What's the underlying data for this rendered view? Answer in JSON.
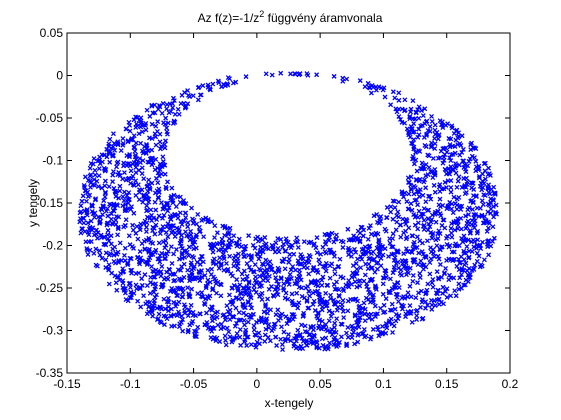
{
  "chart_data": {
    "type": "scatter",
    "title_prefix": "Az f(z)=-1/z",
    "title_superscript": "2",
    "title_suffix": " függvény áramvonala",
    "xlabel": "x-tengely",
    "ylabel": "y tengely",
    "xlim": [
      -0.15,
      0.2
    ],
    "ylim": [
      -0.35,
      0.05
    ],
    "xticks": [
      -0.15,
      -0.1,
      -0.05,
      0,
      0.05,
      0.1,
      0.15,
      0.2
    ],
    "xtick_labels": [
      "-0.15",
      "-0.1",
      "-0.05",
      "0",
      "0.05",
      "0.1",
      "0.15",
      "0.2"
    ],
    "yticks": [
      0.05,
      0,
      -0.05,
      -0.1,
      -0.15,
      -0.2,
      -0.25,
      -0.3,
      -0.35
    ],
    "ytick_labels": [
      "0.05",
      "0",
      "-0.05",
      "-0.1",
      "-0.15",
      "-0.2",
      "-0.25",
      "-0.3",
      "-0.35"
    ],
    "grid": false,
    "marker": "x",
    "series_color": "#0000ff",
    "region": {
      "outer_ellipse": {
        "center": [
          0.025,
          -0.16
        ],
        "radius_x": 0.165,
        "radius_y": 0.163
      },
      "inner_ellipse": {
        "center": [
          0.025,
          -0.095
        ],
        "radius_x": 0.098,
        "radius_y": 0.096
      }
    }
  }
}
